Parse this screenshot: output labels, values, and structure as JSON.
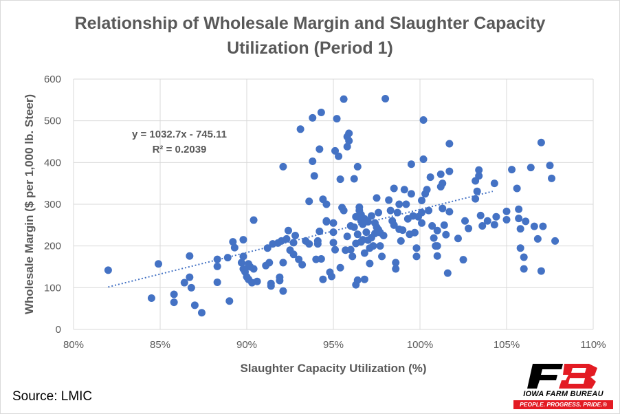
{
  "title_line1": "Relationship of Wholesale Margin and Slaughter Capacity",
  "title_line2": "Utilization (Period 1)",
  "source": "Source: LMIC",
  "logo": {
    "name": "IOWA FARM BUREAU",
    "tagline": "PEOPLE. PROGRESS. PRIDE.®",
    "mark": "FB"
  },
  "colors": {
    "points": "#4472c4",
    "grid": "#d9d9d9",
    "text": "#595959",
    "logo_red": "#e31b23",
    "logo_black": "#000000"
  },
  "chart_data": {
    "type": "scatter",
    "xlabel": "Slaughter Capacity Utilization (%)",
    "ylabel": "Wholesale Margin ($ per 1,000 lb. Steer)",
    "xlim": [
      80,
      110
    ],
    "ylim": [
      0,
      600
    ],
    "x_ticks": [
      "80%",
      "85%",
      "90%",
      "95%",
      "100%",
      "105%",
      "110%"
    ],
    "y_ticks": [
      "0",
      "100",
      "200",
      "300",
      "400",
      "500",
      "600"
    ],
    "grid": true,
    "trendline": {
      "style": "dotted",
      "slope": 1032.7,
      "intercept": -745.11,
      "x_range": [
        82,
        104.2
      ]
    },
    "equation": "y = 1032.7x - 745.11",
    "r_squared": "R² = 0.2039",
    "series": [
      {
        "points": [
          [
            82.0,
            142
          ],
          [
            84.5,
            75
          ],
          [
            84.9,
            157
          ],
          [
            85.8,
            84
          ],
          [
            85.8,
            65
          ],
          [
            86.4,
            112
          ],
          [
            86.7,
            125
          ],
          [
            86.7,
            176
          ],
          [
            86.8,
            100
          ],
          [
            87.0,
            58
          ],
          [
            87.4,
            40
          ],
          [
            88.3,
            168
          ],
          [
            88.3,
            151
          ],
          [
            88.3,
            113
          ],
          [
            88.9,
            172
          ],
          [
            89.0,
            68
          ],
          [
            89.2,
            210
          ],
          [
            89.3,
            196
          ],
          [
            89.7,
            160
          ],
          [
            89.8,
            215
          ],
          [
            89.8,
            175
          ],
          [
            89.8,
            145
          ],
          [
            89.9,
            138
          ],
          [
            90.0,
            126
          ],
          [
            90.1,
            157
          ],
          [
            90.1,
            120
          ],
          [
            90.2,
            150
          ],
          [
            90.3,
            112
          ],
          [
            90.4,
            145
          ],
          [
            90.4,
            262
          ],
          [
            90.6,
            115
          ],
          [
            91.1,
            153
          ],
          [
            91.2,
            195
          ],
          [
            91.3,
            160
          ],
          [
            91.4,
            110
          ],
          [
            91.4,
            104
          ],
          [
            91.5,
            205
          ],
          [
            91.8,
            207
          ],
          [
            91.9,
            117
          ],
          [
            91.9,
            125
          ],
          [
            92.0,
            212
          ],
          [
            92.1,
            390
          ],
          [
            92.1,
            160
          ],
          [
            92.1,
            92
          ],
          [
            92.3,
            217
          ],
          [
            92.4,
            237
          ],
          [
            92.5,
            190
          ],
          [
            92.7,
            208
          ],
          [
            92.7,
            180
          ],
          [
            92.8,
            225
          ],
          [
            93.0,
            168
          ],
          [
            93.1,
            480
          ],
          [
            93.2,
            155
          ],
          [
            93.4,
            212
          ],
          [
            93.6,
            205
          ],
          [
            93.6,
            307
          ],
          [
            93.8,
            507
          ],
          [
            93.8,
            403
          ],
          [
            93.9,
            368
          ],
          [
            94.0,
            168
          ],
          [
            94.1,
            205
          ],
          [
            94.1,
            212
          ],
          [
            94.2,
            235
          ],
          [
            94.2,
            432
          ],
          [
            94.3,
            520
          ],
          [
            94.3,
            169
          ],
          [
            94.4,
            312
          ],
          [
            94.4,
            120
          ],
          [
            94.6,
            300
          ],
          [
            94.6,
            260
          ],
          [
            94.6,
            258
          ],
          [
            94.8,
            137
          ],
          [
            94.9,
            127
          ],
          [
            95.0,
            255
          ],
          [
            95.0,
            208
          ],
          [
            95.0,
            233
          ],
          [
            95.1,
            428
          ],
          [
            95.1,
            191
          ],
          [
            95.2,
            505
          ],
          [
            95.3,
            415
          ],
          [
            95.4,
            148
          ],
          [
            95.4,
            360
          ],
          [
            95.5,
            292
          ],
          [
            95.6,
            552
          ],
          [
            95.6,
            285
          ],
          [
            95.7,
            190
          ],
          [
            95.8,
            462
          ],
          [
            95.8,
            438
          ],
          [
            95.8,
            223
          ],
          [
            95.9,
            470
          ],
          [
            95.9,
            452
          ],
          [
            96.0,
            248
          ],
          [
            96.0,
            191
          ],
          [
            96.1,
            175
          ],
          [
            96.2,
            245
          ],
          [
            96.2,
            361
          ],
          [
            96.3,
            270
          ],
          [
            96.3,
            206
          ],
          [
            96.3,
            107
          ],
          [
            96.4,
            118
          ],
          [
            96.4,
            390
          ],
          [
            96.4,
            228
          ],
          [
            96.5,
            293
          ],
          [
            96.5,
            285
          ],
          [
            96.6,
            275
          ],
          [
            96.6,
            260
          ],
          [
            96.6,
            210
          ],
          [
            96.7,
            252
          ],
          [
            96.7,
            215
          ],
          [
            96.8,
            265
          ],
          [
            96.8,
            183
          ],
          [
            96.8,
            120
          ],
          [
            96.9,
            233
          ],
          [
            97.0,
            258
          ],
          [
            97.0,
            214
          ],
          [
            97.1,
            195
          ],
          [
            97.1,
            158
          ],
          [
            97.2,
            272
          ],
          [
            97.2,
            220
          ],
          [
            97.3,
            200
          ],
          [
            97.4,
            255
          ],
          [
            97.4,
            230
          ],
          [
            97.5,
            315
          ],
          [
            97.5,
            245
          ],
          [
            97.6,
            280
          ],
          [
            97.6,
            239
          ],
          [
            97.7,
            200
          ],
          [
            97.7,
            232
          ],
          [
            97.8,
            175
          ],
          [
            97.9,
            225
          ],
          [
            98.0,
            553
          ],
          [
            98.2,
            310
          ],
          [
            98.3,
            285
          ],
          [
            98.4,
            260
          ],
          [
            98.5,
            338
          ],
          [
            98.5,
            250
          ],
          [
            98.6,
            160
          ],
          [
            98.6,
            145
          ],
          [
            98.7,
            280
          ],
          [
            98.8,
            300
          ],
          [
            98.8,
            240
          ],
          [
            98.9,
            212
          ],
          [
            99.0,
            238
          ],
          [
            99.1,
            335
          ],
          [
            99.2,
            300
          ],
          [
            99.3,
            265
          ],
          [
            99.4,
            228
          ],
          [
            99.5,
            396
          ],
          [
            99.5,
            325
          ],
          [
            99.6,
            272
          ],
          [
            99.7,
            232
          ],
          [
            99.8,
            195
          ],
          [
            99.8,
            175
          ],
          [
            99.9,
            270
          ],
          [
            100.1,
            309
          ],
          [
            100.1,
            280
          ],
          [
            100.1,
            255
          ],
          [
            100.2,
            502
          ],
          [
            100.2,
            408
          ],
          [
            100.3,
            325
          ],
          [
            100.4,
            335
          ],
          [
            100.5,
            285
          ],
          [
            100.6,
            365
          ],
          [
            100.7,
            248
          ],
          [
            100.8,
            219
          ],
          [
            100.9,
            200
          ],
          [
            101.0,
            176
          ],
          [
            101.0,
            200
          ],
          [
            101.0,
            237
          ],
          [
            101.2,
            372
          ],
          [
            101.2,
            342
          ],
          [
            101.3,
            350
          ],
          [
            101.3,
            290
          ],
          [
            101.4,
            250
          ],
          [
            101.5,
            227
          ],
          [
            101.6,
            135
          ],
          [
            101.7,
            445
          ],
          [
            101.7,
            379
          ],
          [
            101.7,
            282
          ],
          [
            102.2,
            218
          ],
          [
            102.5,
            167
          ],
          [
            102.6,
            260
          ],
          [
            102.8,
            242
          ],
          [
            103.2,
            356
          ],
          [
            103.2,
            313
          ],
          [
            103.3,
            331
          ],
          [
            103.4,
            368
          ],
          [
            103.4,
            382
          ],
          [
            103.5,
            273
          ],
          [
            103.6,
            248
          ],
          [
            103.9,
            260
          ],
          [
            104.3,
            350
          ],
          [
            104.3,
            251
          ],
          [
            104.4,
            270
          ],
          [
            105.0,
            263
          ],
          [
            105.0,
            283
          ],
          [
            105.3,
            383
          ],
          [
            105.6,
            338
          ],
          [
            105.7,
            288
          ],
          [
            105.7,
            266
          ],
          [
            105.8,
            241
          ],
          [
            105.8,
            195
          ],
          [
            106.0,
            173
          ],
          [
            106.0,
            145
          ],
          [
            106.1,
            259
          ],
          [
            106.4,
            388
          ],
          [
            106.6,
            247
          ],
          [
            106.8,
            217
          ],
          [
            107.0,
            140
          ],
          [
            107.0,
            448
          ],
          [
            107.1,
            247
          ],
          [
            107.5,
            393
          ],
          [
            107.6,
            362
          ],
          [
            107.8,
            212
          ]
        ]
      }
    ]
  }
}
